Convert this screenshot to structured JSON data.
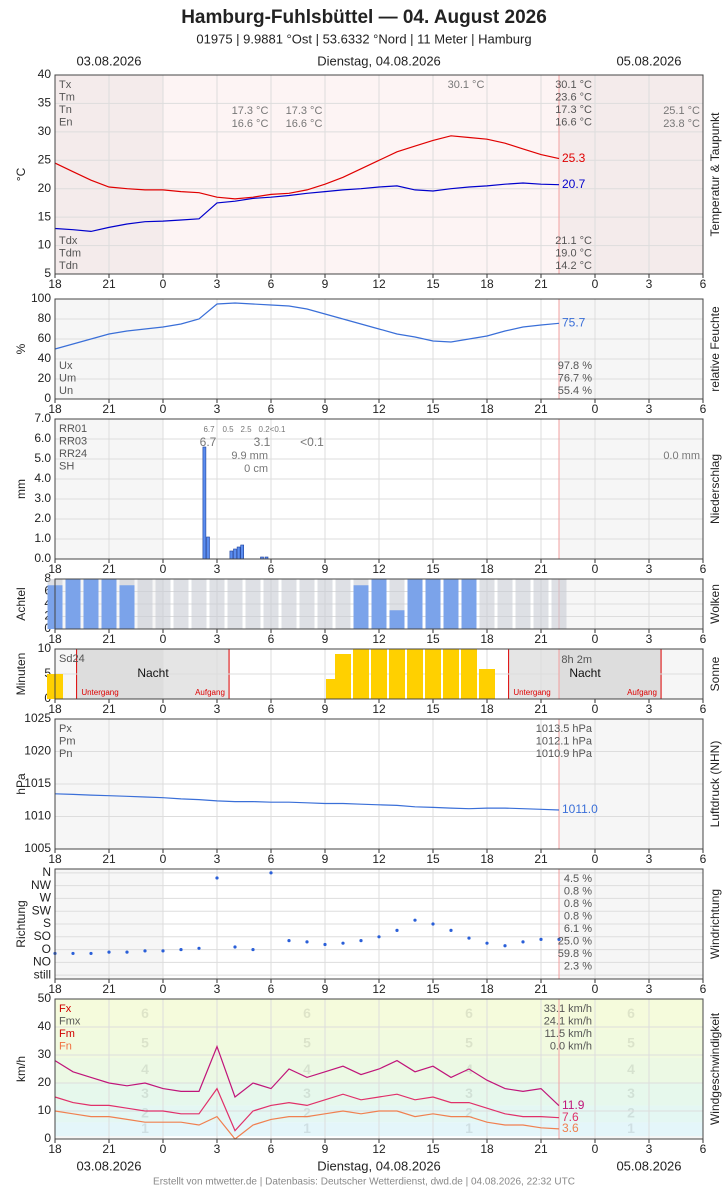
{
  "header": {
    "title": "Hamburg-Fuhlsbüttel  —  04. August 2026",
    "subtitle": "01975  |  9.9881 °Ost  |  53.6332 °Nord  |  11 Meter  |  Hamburg",
    "date_left": "03.08.2026",
    "date_center": "Dienstag, 04.08.2026",
    "date_right": "05.08.2026",
    "footer": "Erstellt von mtwetter.de | Datenbasis: Deutscher Wetterdienst, dwd.de | 04.08.2026, 22:32 UTC"
  },
  "time_axis": {
    "xlim": [
      -6,
      30
    ],
    "xticks": [
      {
        "value": -6,
        "label": "18"
      },
      {
        "value": -3,
        "label": "21"
      },
      0,
      3,
      6,
      9,
      12,
      15,
      {
        "value": 18,
        "label": "18"
      },
      {
        "value": 21,
        "label": "21"
      },
      {
        "value": 24,
        "label": "0"
      },
      {
        "value": 27,
        "label": "3"
      },
      {
        "value": 30,
        "label": "6"
      }
    ]
  },
  "chart_data": [
    {
      "type": "line",
      "ylabel": "°C",
      "side_label": "Temperatur & Taupunkt",
      "background": "#fdf4f4",
      "ylim": [
        5,
        40
      ],
      "yticks": [
        5,
        10,
        15,
        20,
        25,
        30,
        35,
        40
      ],
      "end_labels": true,
      "x": [
        -6,
        -5,
        -4,
        -3,
        -2,
        -1,
        0,
        1,
        2,
        3,
        4,
        5,
        6,
        7,
        8,
        9,
        10,
        11,
        12,
        13,
        14,
        15,
        16,
        17,
        18,
        19,
        20,
        21,
        22
      ],
      "series": [
        {
          "color": "#e00000",
          "values": [
            24.5,
            23,
            21.5,
            20.3,
            20,
            19.8,
            19.8,
            19.5,
            19.3,
            18.5,
            18.2,
            18.5,
            19,
            19.2,
            19.8,
            20.8,
            22,
            23.5,
            25,
            26.5,
            27.5,
            28.5,
            29.3,
            29,
            28.7,
            28,
            27,
            26,
            25.3
          ]
        },
        {
          "color": "#0000cc",
          "values": [
            13,
            12.8,
            12.5,
            13.2,
            13.8,
            14.2,
            14.3,
            14.5,
            14.7,
            17.5,
            17.8,
            18.3,
            18.5,
            18.8,
            19.2,
            19.5,
            19.8,
            20,
            20.3,
            20.5,
            19.8,
            19.6,
            20,
            20.3,
            20.5,
            20.8,
            21,
            20.8,
            20.7
          ]
        }
      ],
      "stats_left": [
        "Tx",
        "Tm",
        "Tn",
        "En"
      ],
      "stats_right": [
        "30.1 °C",
        "23.6 °C",
        "17.3 °C",
        "16.6 °C"
      ],
      "stats_left_bottom": [
        "Tdx",
        "Tdm",
        "Tdn"
      ],
      "stats_right_bottom": [
        "21.1 °C",
        "19.0 °C",
        "14.2 °C"
      ],
      "notes": [
        "30.1 °C",
        "17.3 °C",
        "17.3 °C",
        "16.6 °C",
        "16.6 °C",
        "25.1 °C",
        "23.8 °C"
      ]
    },
    {
      "type": "line",
      "ylabel": "%",
      "side_label": "relative Feuchte",
      "ylim": [
        0,
        100
      ],
      "yticks": [
        0,
        20,
        40,
        60,
        80,
        100
      ],
      "end_labels": true,
      "x": [
        -6,
        -5,
        -4,
        -3,
        -2,
        -1,
        0,
        1,
        2,
        3,
        4,
        5,
        6,
        7,
        8,
        9,
        10,
        11,
        12,
        13,
        14,
        15,
        16,
        17,
        18,
        19,
        20,
        21,
        22
      ],
      "series": [
        {
          "color": "#3a6fd8",
          "values": [
            50,
            55,
            60,
            65,
            68,
            70,
            72,
            75,
            80,
            95,
            96,
            95,
            94,
            93,
            90,
            85,
            80,
            75,
            70,
            65,
            62,
            58,
            57,
            60,
            63,
            68,
            72,
            74,
            75.7
          ]
        }
      ],
      "stats_left_bottom": [
        "Ux",
        "Um",
        "Un"
      ],
      "stats_right_bottom": [
        "97.8 %",
        "76.7 %",
        "55.4 %"
      ]
    },
    {
      "type": "bar",
      "ylabel": "mm",
      "side_label": "Niederschlag",
      "ylim": [
        0,
        7
      ],
      "yticks": [
        {
          "value": 0,
          "label": "0.0"
        },
        {
          "value": 1,
          "label": "1.0"
        },
        {
          "value": 2,
          "label": "2.0"
        },
        {
          "value": 3,
          "label": "3.0"
        },
        {
          "value": 4,
          "label": "4.0"
        },
        {
          "value": 5,
          "label": "5.0"
        },
        {
          "value": 6,
          "label": "6.0"
        },
        {
          "value": 7,
          "label": "7.0"
        }
      ],
      "x": [
        2.3,
        2.5,
        3.8,
        4.0,
        4.2,
        4.4,
        5.5,
        5.75
      ],
      "series": [
        {
          "color": "#5b8def",
          "values": [
            5.6,
            1.1,
            0.4,
            0.5,
            0.6,
            0.7,
            0.1,
            0.1
          ]
        }
      ],
      "stats_left": [
        "RR01",
        "RR03",
        "RR24",
        "SH"
      ],
      "notes": [
        "6.7",
        "0.5",
        "2.5",
        "0.2<0.1",
        "6.7",
        "3.1",
        "<0.1",
        "9.9 mm",
        "0 cm",
        "0.0 mm"
      ]
    },
    {
      "type": "bar",
      "ylabel": "Achtel",
      "side_label": "Wolken",
      "ylim": [
        0,
        8
      ],
      "yticks": [
        0,
        2,
        4,
        6,
        8
      ],
      "x": [
        -6,
        -5,
        -4,
        -3,
        -2,
        -1,
        0,
        1,
        2,
        3,
        4,
        5,
        6,
        7,
        8,
        9,
        10,
        11,
        12,
        13,
        14,
        15,
        16,
        17,
        18,
        19,
        20,
        21,
        22
      ],
      "series": [
        {
          "color": "#7ba3ea",
          "values": [
            7,
            8,
            8,
            8,
            7,
            0,
            0,
            0,
            0,
            0,
            0,
            0,
            0,
            0,
            0,
            0,
            0,
            7,
            8,
            3,
            8,
            8,
            8,
            8,
            0,
            0,
            0,
            0,
            0
          ]
        }
      ]
    },
    {
      "type": "bar",
      "ylabel": "Minuten",
      "side_label": "Sonne",
      "ylim": [
        0,
        10
      ],
      "yticks": [
        0,
        5,
        10
      ],
      "x": [
        -6,
        9.5,
        10,
        11,
        12,
        13,
        14,
        15,
        16,
        17,
        18
      ],
      "series": [
        {
          "color": "#ffd000",
          "values": [
            5,
            4,
            9,
            10,
            10,
            10,
            10,
            10,
            10,
            10,
            6
          ]
        }
      ],
      "stats_left": [
        "Sd24"
      ],
      "notes": [
        "8h 2m",
        "Nacht",
        "Nacht",
        "Untergang",
        "Aufgang",
        "Untergang",
        "Aufgang"
      ]
    },
    {
      "type": "line",
      "ylabel": "hPa",
      "side_label": "Luftdruck (NHN)",
      "ylim": [
        1005,
        1025
      ],
      "yticks": [
        1005,
        1010,
        1015,
        1020,
        1025
      ],
      "end_labels": true,
      "x": [
        -6,
        -5,
        -4,
        -3,
        -2,
        -1,
        0,
        1,
        2,
        3,
        4,
        5,
        6,
        7,
        8,
        9,
        10,
        11,
        12,
        13,
        14,
        15,
        16,
        17,
        18,
        19,
        20,
        21,
        22
      ],
      "series": [
        {
          "color": "#3a6fd8",
          "values": [
            1013.5,
            1013.4,
            1013.3,
            1013.2,
            1013.1,
            1013,
            1012.9,
            1012.7,
            1012.6,
            1012.4,
            1012.3,
            1012.3,
            1012.2,
            1012.2,
            1012.1,
            1012,
            1012,
            1011.9,
            1011.8,
            1011.7,
            1011.5,
            1011.4,
            1011.3,
            1011.2,
            1011.3,
            1011.3,
            1011.2,
            1011.1,
            1011
          ],
          "value_labels": [
            null,
            null,
            null,
            null,
            null,
            null,
            null,
            null,
            null,
            null,
            null,
            null,
            null,
            null,
            null,
            null,
            null,
            null,
            null,
            null,
            null,
            null,
            null,
            null,
            null,
            null,
            null,
            null,
            "1011.0"
          ]
        }
      ],
      "stats_left": [
        "Px",
        "Pm",
        "Pn"
      ],
      "stats_right": [
        "1013.5 hPa",
        "1012.1 hPa",
        "1010.9 hPa"
      ]
    },
    {
      "type": "scatter",
      "ylabel": "Richtung",
      "side_label": "Windrichtung",
      "ylim": [
        -0.3,
        8.3
      ],
      "yticks": [
        {
          "value": 0,
          "label": "still"
        },
        {
          "value": 1,
          "label": "NO"
        },
        {
          "value": 2,
          "label": "O"
        },
        {
          "value": 3,
          "label": "SO"
        },
        {
          "value": 4,
          "label": "S"
        },
        {
          "value": 5,
          "label": "SW"
        },
        {
          "value": 6,
          "label": "W"
        },
        {
          "value": 7,
          "label": "NW"
        },
        {
          "value": 8,
          "label": "N"
        }
      ],
      "x": [
        -6,
        -5,
        -4,
        -3,
        -2,
        -1,
        0,
        1,
        2,
        3,
        4,
        5,
        6,
        7,
        8,
        9,
        10,
        11,
        12,
        13,
        14,
        15,
        16,
        17,
        18,
        19,
        20,
        21,
        22
      ],
      "series": [
        {
          "color": "#2a5fd8",
          "values": [
            1.7,
            1.7,
            1.7,
            1.8,
            1.8,
            1.9,
            1.9,
            2,
            2.1,
            7.6,
            2.2,
            2,
            8,
            2.7,
            2.6,
            2.4,
            2.5,
            2.7,
            3,
            3.5,
            4.3,
            4,
            3.5,
            2.9,
            2.5,
            2.3,
            2.6,
            2.8,
            2.8
          ]
        }
      ],
      "stats_right": [
        "4.5 %",
        "0.8 %",
        "0.8 %",
        "0.8 %",
        "6.1 %",
        "25.0 %",
        "59.8 %",
        "2.3 %"
      ]
    },
    {
      "type": "line",
      "ylabel": "km/h",
      "side_label": "Windgeschwindigkeit",
      "ylim": [
        0,
        50
      ],
      "yticks": [
        0,
        10,
        20,
        30,
        40,
        50
      ],
      "end_labels": true,
      "bands": [
        {
          "label": "1",
          "from": 1,
          "to": 6,
          "color": "#e4f6fa"
        },
        {
          "label": "2",
          "from": 6,
          "to": 12,
          "color": "#e4f7f3"
        },
        {
          "label": "3",
          "from": 12,
          "to": 20,
          "color": "#e6f8ec"
        },
        {
          "label": "4",
          "from": 20,
          "to": 29,
          "color": "#ecf9e4"
        },
        {
          "label": "5",
          "from": 29,
          "to": 39,
          "color": "#f1fadf"
        },
        {
          "label": "6",
          "from": 39,
          "to": 50,
          "color": "#f5fbdc"
        }
      ],
      "x": [
        -6,
        -5,
        -4,
        -3,
        -2,
        -1,
        0,
        1,
        2,
        3,
        4,
        5,
        6,
        7,
        8,
        9,
        10,
        11,
        12,
        13,
        14,
        15,
        16,
        17,
        18,
        19,
        20,
        21,
        22
      ],
      "series": [
        {
          "color": "#c0157a",
          "values": [
            28,
            24,
            22,
            20,
            19,
            20,
            18,
            17,
            17,
            33,
            15,
            20,
            18,
            25,
            22,
            24,
            26,
            23,
            25,
            28,
            24,
            26,
            22,
            25,
            21,
            18,
            17,
            18,
            11.9
          ]
        },
        {
          "color": "#e0306a",
          "values": [
            15,
            13,
            12,
            12,
            11,
            10,
            10,
            9,
            9,
            18,
            3,
            10,
            12,
            13,
            12,
            14,
            16,
            14,
            15,
            16,
            14,
            15,
            13,
            13,
            11,
            9,
            8,
            8,
            7.6
          ]
        },
        {
          "color": "#f08050",
          "values": [
            10,
            9,
            8,
            8,
            7,
            6,
            6,
            6,
            5,
            8,
            0,
            5,
            7,
            8,
            8,
            9,
            10,
            9,
            10,
            10,
            8,
            9,
            8,
            8,
            6,
            5,
            5,
            4,
            3.6
          ]
        }
      ],
      "stats_left": [
        "Fx",
        "Fmx",
        "Fm",
        "Fn"
      ],
      "stats_left_colors": [
        "#d00000",
        "#555555",
        "#d00000",
        "#f07040"
      ],
      "stats_right": [
        "33.1 km/h",
        "24.1 km/h",
        "11.5 km/h",
        "0.0 km/h"
      ]
    }
  ]
}
